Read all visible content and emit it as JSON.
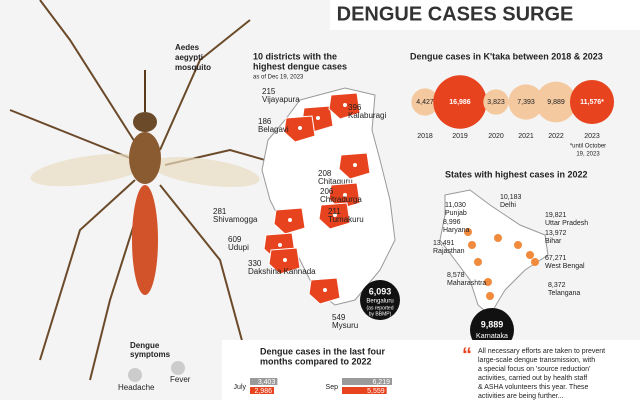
{
  "title": "DENGUE CASES SURGE",
  "mosquito": {
    "label": [
      "Aedes",
      "aegypti",
      "mosquito"
    ],
    "symptoms_title": [
      "Dengue",
      "symptoms"
    ],
    "symptoms": [
      "Headache",
      "Fever"
    ]
  },
  "districts": {
    "title": [
      "10 districts with the",
      "highest dengue cases"
    ],
    "note": "as of Dec 19, 2023",
    "items": [
      {
        "value": 215,
        "name": "Vijayapura"
      },
      {
        "value": 186,
        "name": "Belagavi"
      },
      {
        "value": 396,
        "name": "Kalaburagi"
      },
      {
        "value": 208,
        "name": "Chitaguru"
      },
      {
        "value": 206,
        "name": "Chitradurga"
      },
      {
        "value": 211,
        "name": "Tumakuru"
      },
      {
        "value": 281,
        "name": "Shivamogga"
      },
      {
        "value": 609,
        "name": "Udupi"
      },
      {
        "value": 330,
        "name": "Dakshina Kannada"
      },
      {
        "value": 549,
        "name": "Mysuru"
      }
    ],
    "bengaluru": {
      "value": 6093,
      "value_label": "6,093",
      "name": "Bengaluru",
      "note": [
        "(as reported",
        "by BBMP)"
      ]
    }
  },
  "chart_data": {
    "type": "bubble",
    "title": "Dengue cases in K'taka between 2018 & 2023",
    "categories": [
      "2018",
      "2019",
      "2020",
      "2021",
      "2022",
      "2023"
    ],
    "values": [
      4427,
      16986,
      3823,
      7393,
      9889,
      11576
    ],
    "value_labels": [
      "4,427",
      "16,986",
      "3,823",
      "7,393",
      "9,889",
      "11,576*"
    ],
    "colors": [
      "#f5c9a0",
      "#e8431f",
      "#f5c9a0",
      "#f5c9a0",
      "#f5c9a0",
      "#e8431f"
    ],
    "note": [
      "*until October",
      "19, 2023"
    ]
  },
  "states": {
    "title": "States with highest cases in 2022",
    "items": [
      {
        "value": 11030,
        "value_label": "11,030",
        "name": "Punjab"
      },
      {
        "value": 10183,
        "value_label": "10,183",
        "name": "Delhi"
      },
      {
        "value": 8996,
        "value_label": "8,996",
        "name": "Haryana"
      },
      {
        "value": 19821,
        "value_label": "19,821",
        "name": "Uttar Pradesh"
      },
      {
        "value": 13491,
        "value_label": "13,491",
        "name": "Rajasthan"
      },
      {
        "value": 13972,
        "value_label": "13,972",
        "name": "Bihar"
      },
      {
        "value": 67271,
        "value_label": "67,271",
        "name": "West Bengal"
      },
      {
        "value": 8578,
        "value_label": "8,578",
        "name": "Maharashtra"
      },
      {
        "value": 8372,
        "value_label": "8,372",
        "name": "Telangana"
      }
    ],
    "karnataka": {
      "value": 9889,
      "value_label": "9,889",
      "name": "Karnataka"
    }
  },
  "months": {
    "title": [
      "Dengue cases in the last four",
      "months compared to 2022"
    ],
    "categories": [
      "July",
      "Sep"
    ],
    "series": [
      {
        "color": "#9a9a9a",
        "values": [
          3403,
          6219
        ],
        "value_labels": [
          "3,403",
          "6,219"
        ]
      },
      {
        "color": "#e8431f",
        "values": [
          2986,
          5559
        ],
        "value_labels": [
          "2,986",
          "5,559"
        ]
      }
    ]
  },
  "quote": [
    "All necessary efforts are taken to prevent",
    "large-scale dengue transmission, with",
    "a special focus on 'source reduction'",
    "activities, carried out by health staff",
    "& ASHA volunteers this year. These",
    "activities are being further..."
  ]
}
